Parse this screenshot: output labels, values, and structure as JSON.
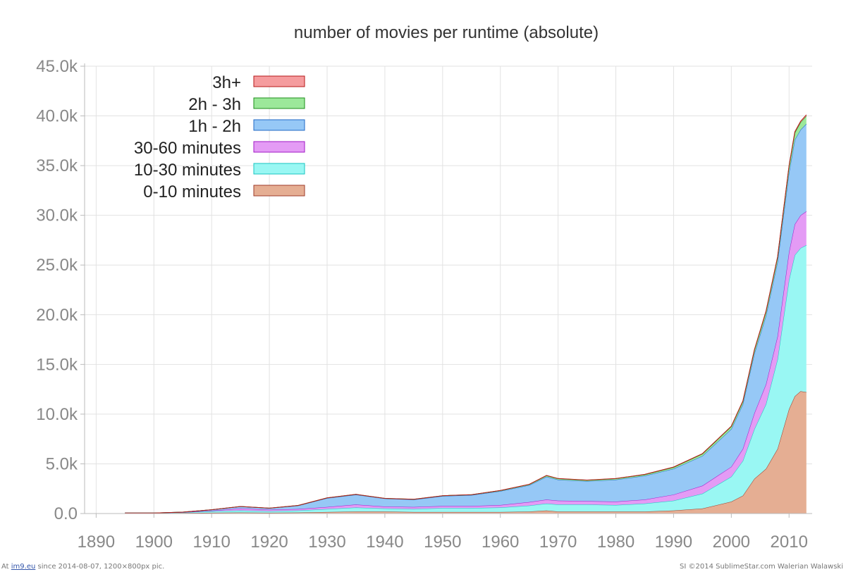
{
  "chart_data": {
    "type": "area",
    "stacked": true,
    "title": "number of movies per runtime (absolute)",
    "xlabel": "",
    "ylabel": "",
    "xlim": [
      1888,
      2014
    ],
    "ylim": [
      0,
      45000
    ],
    "x_ticks": [
      1890,
      1900,
      1910,
      1920,
      1930,
      1940,
      1950,
      1960,
      1970,
      1980,
      1990,
      2000,
      2010
    ],
    "x_tick_labels": [
      "1890",
      "1900",
      "1910",
      "1920",
      "1930",
      "1940",
      "1950",
      "1960",
      "1970",
      "1980",
      "1990",
      "2000",
      "2010"
    ],
    "y_ticks": [
      0,
      5000,
      10000,
      15000,
      20000,
      25000,
      30000,
      35000,
      40000,
      45000
    ],
    "y_tick_labels": [
      "0.0",
      "5.0k",
      "10.0k",
      "15.0k",
      "20.0k",
      "25.0k",
      "30.0k",
      "35.0k",
      "40.0k",
      "45.0k"
    ],
    "grid": true,
    "legend_position": "top-left",
    "x": [
      1895,
      1900,
      1905,
      1910,
      1915,
      1920,
      1925,
      1930,
      1935,
      1940,
      1945,
      1950,
      1955,
      1960,
      1965,
      1968,
      1970,
      1975,
      1980,
      1985,
      1990,
      1995,
      2000,
      2002,
      2004,
      2006,
      2008,
      2010,
      2011,
      2012,
      2013
    ],
    "series": [
      {
        "name": "0-10 minutes",
        "color": "#e5ae93",
        "stroke": "#9e3b2a",
        "values": [
          40,
          30,
          60,
          80,
          100,
          80,
          100,
          150,
          200,
          200,
          150,
          150,
          150,
          150,
          200,
          300,
          200,
          200,
          200,
          200,
          300,
          500,
          1200,
          1800,
          3500,
          4500,
          6500,
          10500,
          11800,
          12300,
          12200
        ]
      },
      {
        "name": "10-30 minutes",
        "color": "#99f7f3",
        "stroke": "#18c6c2",
        "values": [
          20,
          20,
          50,
          150,
          200,
          150,
          200,
          300,
          400,
          300,
          300,
          400,
          400,
          450,
          600,
          700,
          700,
          700,
          650,
          800,
          1000,
          1500,
          2500,
          3500,
          5000,
          6500,
          9000,
          13000,
          14200,
          14400,
          14800
        ]
      },
      {
        "name": "30-60 minutes",
        "color": "#e49bf5",
        "stroke": "#a018c6",
        "values": [
          0,
          0,
          10,
          50,
          200,
          150,
          150,
          200,
          300,
          200,
          200,
          200,
          200,
          250,
          350,
          400,
          400,
          350,
          350,
          400,
          600,
          800,
          1000,
          1200,
          1600,
          2000,
          2300,
          2800,
          3100,
          3300,
          3400
        ]
      },
      {
        "name": "1h - 2h",
        "color": "#96c8f6",
        "stroke": "#2069c6",
        "values": [
          0,
          0,
          20,
          100,
          200,
          150,
          350,
          900,
          1000,
          800,
          750,
          1000,
          1100,
          1400,
          1700,
          2300,
          2100,
          2000,
          2200,
          2400,
          2600,
          3000,
          3800,
          4500,
          6000,
          6900,
          7500,
          8000,
          8500,
          8600,
          8800
        ]
      },
      {
        "name": "2h - 3h",
        "color": "#9ce89a",
        "stroke": "#1d8e1a",
        "values": [
          0,
          0,
          0,
          5,
          10,
          10,
          15,
          20,
          30,
          25,
          30,
          40,
          50,
          60,
          80,
          120,
          110,
          100,
          110,
          120,
          150,
          200,
          250,
          280,
          350,
          400,
          450,
          600,
          700,
          750,
          800
        ]
      },
      {
        "name": "3h+",
        "color": "#f59c9e",
        "stroke": "#b61818",
        "values": [
          0,
          0,
          0,
          0,
          0,
          0,
          0,
          0,
          0,
          0,
          0,
          0,
          0,
          5,
          10,
          15,
          15,
          15,
          15,
          20,
          25,
          30,
          40,
          45,
          50,
          60,
          70,
          90,
          100,
          110,
          120
        ]
      }
    ]
  },
  "footer": {
    "left_prefix": "At",
    "left_link": "im9.eu",
    "left_suffix": "since 2014-08-07, 1200×800px pic.",
    "right": "SI ©2014 SublimeStar.com Walerian Walawski"
  }
}
